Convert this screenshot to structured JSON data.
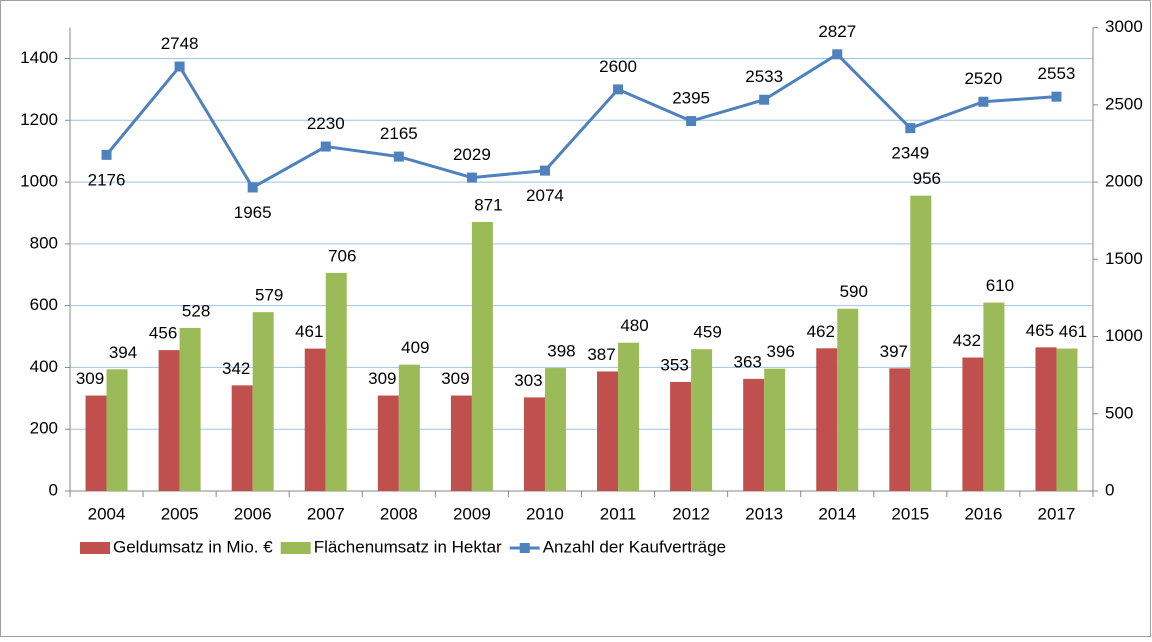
{
  "chart_data": {
    "type": "bar_line",
    "categories": [
      "2004",
      "2005",
      "2006",
      "2007",
      "2008",
      "2009",
      "2010",
      "2011",
      "2012",
      "2013",
      "2014",
      "2015",
      "2016",
      "2017"
    ],
    "series": [
      {
        "name": "Geldumsatz in Mio. €",
        "color": "#c0504d",
        "type": "bar",
        "values": [
          309,
          456,
          342,
          461,
          309,
          309,
          303,
          387,
          353,
          363,
          462,
          397,
          432,
          465
        ]
      },
      {
        "name": "Flächenumsatz in Hektar",
        "color": "#9bbb59",
        "type": "bar",
        "values": [
          394,
          528,
          579,
          706,
          409,
          871,
          398,
          480,
          459,
          396,
          590,
          956,
          610,
          461
        ]
      },
      {
        "name": "Anzahl der Kaufverträge",
        "color": "#4f81bd",
        "type": "line",
        "axis": "y2",
        "values": [
          2176,
          2748,
          1965,
          2230,
          2165,
          2029,
          2074,
          2600,
          2395,
          2533,
          2827,
          2349,
          2520,
          2553
        ]
      }
    ],
    "ylim": [
      0,
      1500
    ],
    "yticks": [
      0,
      200,
      400,
      600,
      800,
      1000,
      1200,
      1400
    ],
    "y2lim": [
      0,
      3000
    ],
    "y2ticks": [
      0,
      500,
      1000,
      1500,
      2000,
      2500,
      3000
    ],
    "grid": true,
    "legend": "bottom-left"
  }
}
